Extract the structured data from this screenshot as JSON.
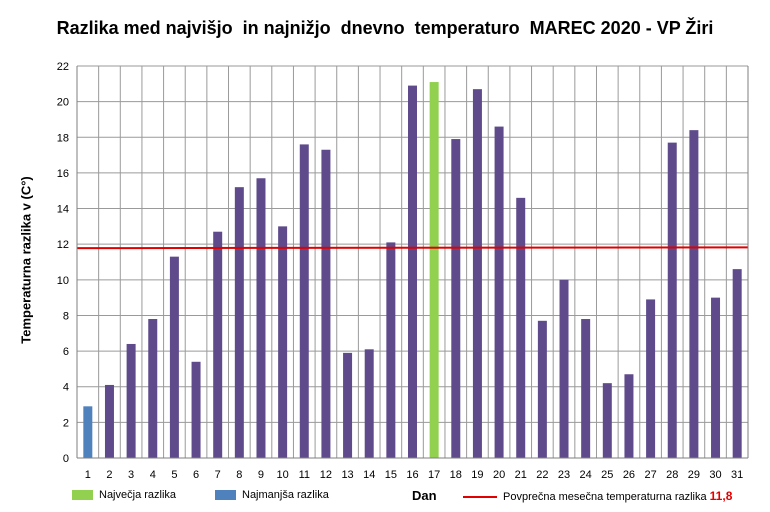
{
  "chart_data": {
    "type": "bar",
    "title": "Razlika med najvišjo  in najnižjo  dnevno  temperaturo  MAREC 2020 - VP Žiri",
    "xlabel": "Dan",
    "ylabel": "Temperaturna razlika v (C°)",
    "ylim": [
      0,
      22
    ],
    "yticks": [
      0,
      2,
      4,
      6,
      8,
      10,
      12,
      14,
      16,
      18,
      20,
      22
    ],
    "grid": true,
    "categories": [
      "1",
      "2",
      "3",
      "4",
      "5",
      "6",
      "7",
      "8",
      "9",
      "10",
      "11",
      "12",
      "13",
      "14",
      "15",
      "16",
      "17",
      "18",
      "19",
      "20",
      "21",
      "22",
      "23",
      "24",
      "25",
      "26",
      "27",
      "28",
      "29",
      "30",
      "31"
    ],
    "values": [
      2.9,
      4.1,
      6.4,
      7.8,
      11.3,
      5.4,
      12.7,
      15.2,
      15.7,
      13.0,
      17.6,
      17.3,
      5.9,
      6.1,
      12.1,
      20.9,
      21.1,
      17.9,
      20.7,
      18.6,
      14.6,
      7.7,
      10.0,
      7.8,
      4.2,
      4.7,
      8.9,
      17.7,
      18.4,
      9.0,
      10.6
    ],
    "max_day": "17",
    "min_day": "1",
    "average": 11.8,
    "colors": {
      "bar": "#5f4b8b",
      "max": "#92d050",
      "min": "#4f81bd",
      "average_line": "#e00000",
      "grid": "#9a9a9a"
    },
    "legend": {
      "max_label": "Največja razlika",
      "min_label": "Najmanjša razlika",
      "average_label": "Povprečna mesečna temperaturna razlika",
      "average_value": "11,8",
      "placement": "bottom"
    }
  }
}
